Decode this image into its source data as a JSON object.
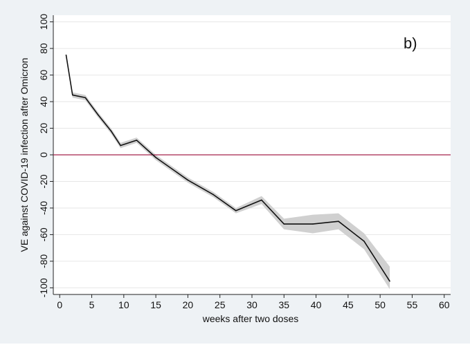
{
  "chart_data": {
    "type": "line",
    "panel_label": "b)",
    "xlabel": "weeks after two doses",
    "ylabel": "VE against COVID-19 infection after Omicron",
    "xlim": [
      -1,
      61
    ],
    "ylim": [
      -105,
      105
    ],
    "xticks": [
      0,
      5,
      10,
      15,
      20,
      25,
      30,
      35,
      40,
      45,
      50,
      55,
      60
    ],
    "yticks": [
      -100,
      -80,
      -60,
      -40,
      -20,
      0,
      20,
      40,
      60,
      80,
      100
    ],
    "reference_line": {
      "y": 0,
      "color": "#a3224a"
    },
    "grid": "horizontal",
    "series": [
      {
        "color": "#111111",
        "ci_color": "#d0d0d0",
        "points": [
          {
            "x": 1,
            "y": 75,
            "lo": 75,
            "hi": 75
          },
          {
            "x": 2,
            "y": 45,
            "lo": 43,
            "hi": 47
          },
          {
            "x": 4,
            "y": 43,
            "lo": 41,
            "hi": 45
          },
          {
            "x": 6,
            "y": 30,
            "lo": 28,
            "hi": 32
          },
          {
            "x": 8,
            "y": 18,
            "lo": 16,
            "hi": 20
          },
          {
            "x": 9.5,
            "y": 7,
            "lo": 5,
            "hi": 9
          },
          {
            "x": 12,
            "y": 11,
            "lo": 9,
            "hi": 13
          },
          {
            "x": 15,
            "y": -2,
            "lo": -4,
            "hi": 0
          },
          {
            "x": 20,
            "y": -19,
            "lo": -21,
            "hi": -17
          },
          {
            "x": 24,
            "y": -30,
            "lo": -32,
            "hi": -28
          },
          {
            "x": 27.5,
            "y": -42,
            "lo": -44,
            "hi": -40
          },
          {
            "x": 31.5,
            "y": -34,
            "lo": -37,
            "hi": -31
          },
          {
            "x": 35,
            "y": -52,
            "lo": -56,
            "hi": -48
          },
          {
            "x": 39.5,
            "y": -52,
            "lo": -59,
            "hi": -45
          },
          {
            "x": 43.5,
            "y": -50,
            "lo": -56,
            "hi": -44
          },
          {
            "x": 47.5,
            "y": -65,
            "lo": -71,
            "hi": -59
          },
          {
            "x": 51.5,
            "y": -95,
            "lo": -101,
            "hi": -84
          }
        ]
      }
    ]
  }
}
